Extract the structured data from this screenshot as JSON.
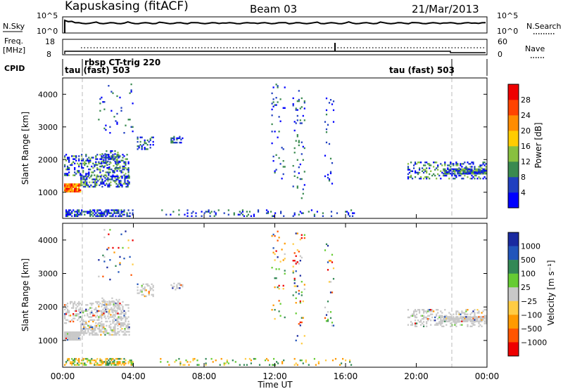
{
  "header": {
    "station": "Kapuskasing (fitACF)",
    "beam": "Beam 03",
    "date": "21/Mar/2013"
  },
  "noise_panel": {
    "left_label": "N.Sky",
    "right_label": "N.Search",
    "left_ticks": [
      "10^5",
      "10^0"
    ],
    "right_ticks": [
      "10^5",
      "10^0"
    ]
  },
  "freq_panel": {
    "left_label_1": "Freq.",
    "left_label_2": "[MHz]",
    "right_label": "Nave",
    "left_ticks": [
      "18",
      "8"
    ],
    "right_ticks": [
      "60",
      "0"
    ]
  },
  "cpid_panel": {
    "label": "CPID",
    "programs": [
      {
        "name": "tau (fast) 503",
        "start_hour": 0
      },
      {
        "name": "rbsp CT-trig 220",
        "start_hour": 1
      },
      {
        "name": "tau (fast) 503",
        "start_hour": 22
      }
    ]
  },
  "colors": {
    "power_scale": [
      "#0000ff",
      "#2040c0",
      "#3a8a50",
      "#88c040",
      "#ffcc00",
      "#ff8c00",
      "#ff4400",
      "#ee0000"
    ],
    "velocity_scale": [
      "#ee0000",
      "#ff5500",
      "#ff9a00",
      "#ffcc44",
      "#c8c8c8",
      "#66cc33",
      "#338855",
      "#2255bb",
      "#1a2aa0"
    ],
    "ground_scatter": "#c8c8c8"
  },
  "chart_data": [
    {
      "type": "heatmap",
      "title": "Power",
      "xlabel": "",
      "ylabel": "Slant Range [km]",
      "xlim": [
        0,
        24
      ],
      "ylim": [
        200,
        4500
      ],
      "y_ticks": [
        "1000",
        "2000",
        "3000",
        "4000"
      ],
      "colorbar_label": "Power [dB]",
      "colorbar_ticks": [
        "4",
        "8",
        "12",
        "16",
        "20",
        "24",
        "28"
      ],
      "colorbar_range": [
        0,
        32
      ]
    },
    {
      "type": "heatmap",
      "title": "Velocity",
      "xlabel": "Time UT",
      "ylabel": "Slant Range [km]",
      "xlim": [
        0,
        24
      ],
      "ylim": [
        200,
        4500
      ],
      "x_ticks": [
        "00:00",
        "04:00",
        "08:00",
        "12:00",
        "16:00",
        "20:00",
        "00:00"
      ],
      "y_ticks": [
        "1000",
        "2000",
        "3000",
        "4000"
      ],
      "colorbar_label": "Velocity [m s⁻¹]",
      "colorbar_ticks": [
        "1000",
        "500",
        "100",
        "25",
        "−25",
        "−100",
        "−500",
        "−1000"
      ]
    }
  ]
}
